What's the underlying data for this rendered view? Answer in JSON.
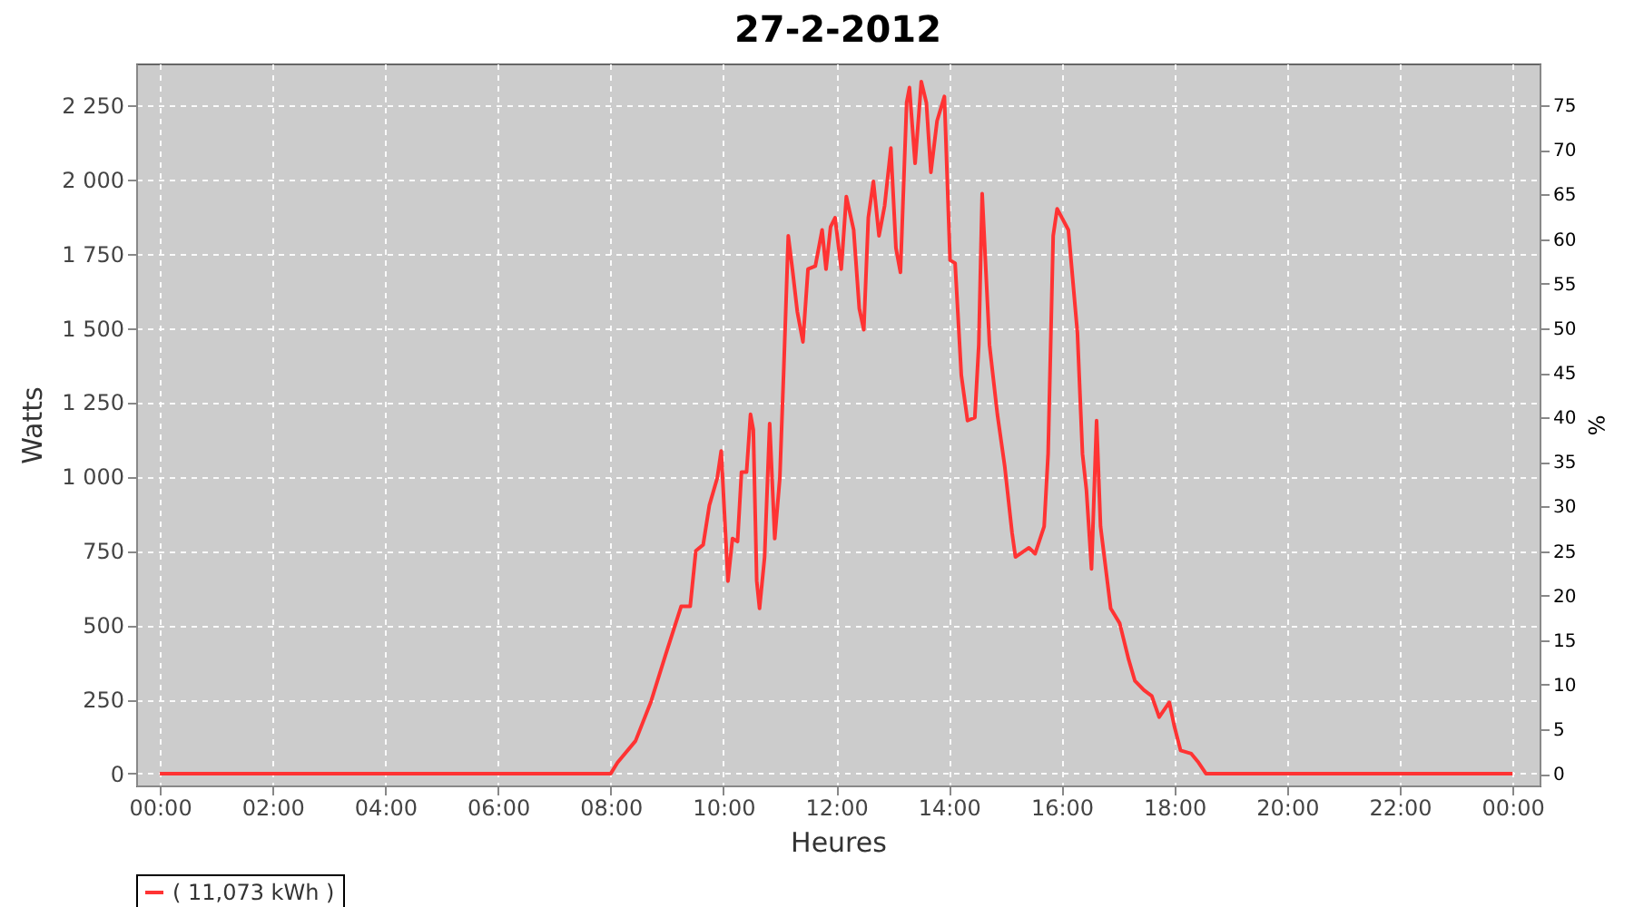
{
  "chart_data": {
    "type": "line",
    "title": "27-2-2012",
    "xlabel": "Heures",
    "ylabel": "Watts",
    "y2label": "%",
    "xlim": [
      -0.42,
      24.48
    ],
    "xticks": [
      {
        "value": 0,
        "label": "00:00"
      },
      {
        "value": 2,
        "label": "02:00"
      },
      {
        "value": 4,
        "label": "04:00"
      },
      {
        "value": 6,
        "label": "06:00"
      },
      {
        "value": 8,
        "label": "08:00"
      },
      {
        "value": 10,
        "label": "10:00"
      },
      {
        "value": 12,
        "label": "12:00"
      },
      {
        "value": 14,
        "label": "14:00"
      },
      {
        "value": 16,
        "label": "16:00"
      },
      {
        "value": 18,
        "label": "18:00"
      },
      {
        "value": 20,
        "label": "20:00"
      },
      {
        "value": 22,
        "label": "22:00"
      },
      {
        "value": 24,
        "label": "00:00"
      }
    ],
    "ylim": [
      -40,
      2390
    ],
    "yticks": [
      0,
      250,
      500,
      750,
      {
        "value": 1000,
        "label": "1 000"
      },
      {
        "value": 1250,
        "label": "1 250"
      },
      {
        "value": 1500,
        "label": "1 500"
      },
      {
        "value": 1750,
        "label": "1 750"
      },
      {
        "value": 2000,
        "label": "2 000"
      },
      {
        "value": 2250,
        "label": "2 250"
      }
    ],
    "y2lim": [
      -1.3,
      79.7
    ],
    "y2ticks": [
      0,
      5,
      10,
      15,
      20,
      25,
      30,
      35,
      40,
      45,
      50,
      55,
      60,
      65,
      70,
      75
    ],
    "grid": true,
    "legend": "bottom",
    "series": [
      {
        "name": "( 11,073 kWh )",
        "color": "#ff3333",
        "x": [
          0,
          8.0,
          8.12,
          8.44,
          8.71,
          8.98,
          9.25,
          9.41,
          9.51,
          9.64,
          9.75,
          9.89,
          9.96,
          10.08,
          10.16,
          10.25,
          10.32,
          10.41,
          10.48,
          10.53,
          10.59,
          10.64,
          10.73,
          10.82,
          10.91,
          11.0,
          11.07,
          11.15,
          11.23,
          11.31,
          11.41,
          11.5,
          11.63,
          11.75,
          11.82,
          11.9,
          11.98,
          12.09,
          12.18,
          12.31,
          12.41,
          12.49,
          12.57,
          12.66,
          12.76,
          12.86,
          12.97,
          13.06,
          13.14,
          13.25,
          13.3,
          13.4,
          13.51,
          13.6,
          13.68,
          13.79,
          13.92,
          14.02,
          14.11,
          14.22,
          14.33,
          14.46,
          14.53,
          14.59,
          14.72,
          14.86,
          14.99,
          15.12,
          15.18,
          15.42,
          15.53,
          15.69,
          15.76,
          15.85,
          15.92,
          16.12,
          16.28,
          16.37,
          16.44,
          16.53,
          16.62,
          16.69,
          16.87,
          17.03,
          17.19,
          17.3,
          17.46,
          17.6,
          17.73,
          17.91,
          18.0,
          18.11,
          18.3,
          18.43,
          18.56,
          24
        ],
        "values": [
          0,
          0,
          37,
          110,
          240,
          404,
          563,
          563,
          750,
          770,
          903,
          995,
          1086,
          648,
          791,
          781,
          1015,
          1015,
          1209,
          1157,
          648,
          556,
          729,
          1178,
          791,
          995,
          1362,
          1810,
          1687,
          1555,
          1453,
          1698,
          1708,
          1830,
          1698,
          1840,
          1871,
          1698,
          1942,
          1830,
          1565,
          1494,
          1871,
          1993,
          1810,
          1912,
          2105,
          1769,
          1687,
          2258,
          2309,
          2054,
          2329,
          2258,
          2024,
          2197,
          2279,
          1728,
          1718,
          1341,
          1188,
          1198,
          1443,
          1952,
          1443,
          1209,
          1035,
          811,
          729,
          760,
          740,
          832,
          1076,
          1810,
          1901,
          1830,
          1484,
          1076,
          954,
          689,
          1188,
          832,
          556,
          506,
          383,
          312,
          281,
          261,
          190,
          240,
          159,
          78,
          67,
          37,
          0,
          0
        ]
      }
    ]
  }
}
